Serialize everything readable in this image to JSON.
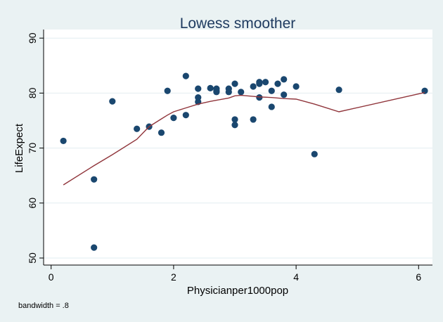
{
  "chart_data": {
    "type": "scatter",
    "title": "Lowess smoother",
    "xlabel": "Physicianper1000pop",
    "ylabel": "LifeExpect",
    "note": "bandwidth = .8",
    "xlim": [
      -0.1,
      6.2
    ],
    "ylim": [
      48.7,
      91.5
    ],
    "xticks": [
      0,
      2,
      4,
      6
    ],
    "yticks": [
      50,
      60,
      70,
      80,
      90
    ],
    "grid": "horizontal",
    "colors": {
      "points": "#1a476f",
      "line": "#90353b",
      "background": "#eaf2f3",
      "plot": "#ffffff"
    },
    "points": [
      [
        0.2,
        71.3
      ],
      [
        0.7,
        64.3
      ],
      [
        0.7,
        51.9
      ],
      [
        1.0,
        78.5
      ],
      [
        1.4,
        73.5
      ],
      [
        1.6,
        73.9
      ],
      [
        1.8,
        72.8
      ],
      [
        1.9,
        80.4
      ],
      [
        2.0,
        75.5
      ],
      [
        2.2,
        83.1
      ],
      [
        2.2,
        76.0
      ],
      [
        2.4,
        80.8
      ],
      [
        2.4,
        79.2
      ],
      [
        2.4,
        78.4
      ],
      [
        2.6,
        80.9
      ],
      [
        2.7,
        80.8
      ],
      [
        2.7,
        80.4
      ],
      [
        2.7,
        80.2
      ],
      [
        2.9,
        80.8
      ],
      [
        2.9,
        80.2
      ],
      [
        3.0,
        81.7
      ],
      [
        3.1,
        80.2
      ],
      [
        3.0,
        75.2
      ],
      [
        3.0,
        74.2
      ],
      [
        3.3,
        75.2
      ],
      [
        3.3,
        81.2
      ],
      [
        3.4,
        82.0
      ],
      [
        3.4,
        81.7
      ],
      [
        3.4,
        79.2
      ],
      [
        3.5,
        82.0
      ],
      [
        3.6,
        80.4
      ],
      [
        3.6,
        77.5
      ],
      [
        3.7,
        81.7
      ],
      [
        3.8,
        82.5
      ],
      [
        3.8,
        79.7
      ],
      [
        4.0,
        81.2
      ],
      [
        4.3,
        68.9
      ],
      [
        4.7,
        80.6
      ],
      [
        6.1,
        80.4
      ]
    ],
    "lowess": [
      [
        0.2,
        63.3
      ],
      [
        0.7,
        66.8
      ],
      [
        1.0,
        68.8
      ],
      [
        1.4,
        71.6
      ],
      [
        1.6,
        73.9
      ],
      [
        1.8,
        75.3
      ],
      [
        1.9,
        76.0
      ],
      [
        2.0,
        76.6
      ],
      [
        2.2,
        77.3
      ],
      [
        2.4,
        78.0
      ],
      [
        2.6,
        78.5
      ],
      [
        2.7,
        78.7
      ],
      [
        2.9,
        79.1
      ],
      [
        3.0,
        79.5
      ],
      [
        3.1,
        79.6
      ],
      [
        3.3,
        79.4
      ],
      [
        3.4,
        79.3
      ],
      [
        3.6,
        79.2
      ],
      [
        3.8,
        79.0
      ],
      [
        4.0,
        78.9
      ],
      [
        4.3,
        78.0
      ],
      [
        4.7,
        76.6
      ],
      [
        6.1,
        80.1
      ]
    ]
  }
}
